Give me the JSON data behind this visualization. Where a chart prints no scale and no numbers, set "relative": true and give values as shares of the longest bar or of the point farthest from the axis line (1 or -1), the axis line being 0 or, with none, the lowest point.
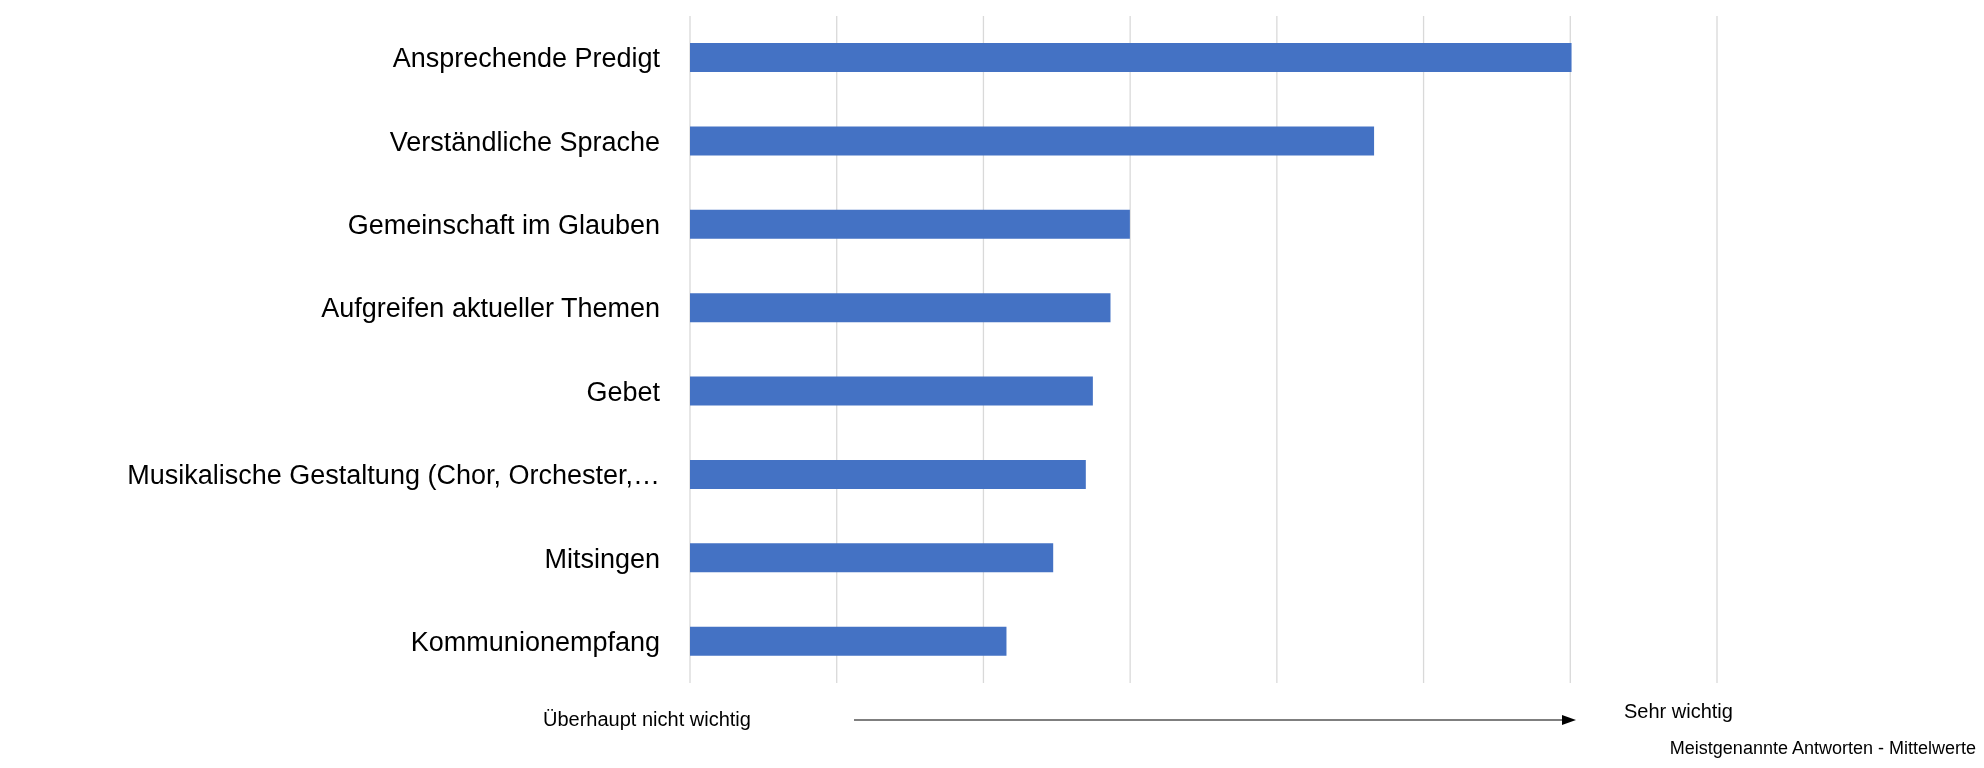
{
  "chart_data": {
    "type": "bar",
    "orientation": "horizontal",
    "relative": true,
    "grid": "x",
    "color": "#4472c4",
    "categories": [
      "Ansprechende Predigt",
      "Verständliche Sprache",
      "Gemeinschaft im Glauben",
      "Aufgreifen aktueller Themen",
      "Gebet",
      "Musikalische Gestaltung (Chor, Orchester,…",
      "Mitsingen",
      "Kommunionempfang"
    ],
    "values": [
      1,
      0.776,
      0.499,
      0.477,
      0.457,
      0.449,
      0.412,
      0.359
    ],
    "annotations": [
      "Überhaupt nicht wichtig",
      "Sehr wichtig",
      "Meistgenannte Antworten - Mittelwerte"
    ]
  }
}
